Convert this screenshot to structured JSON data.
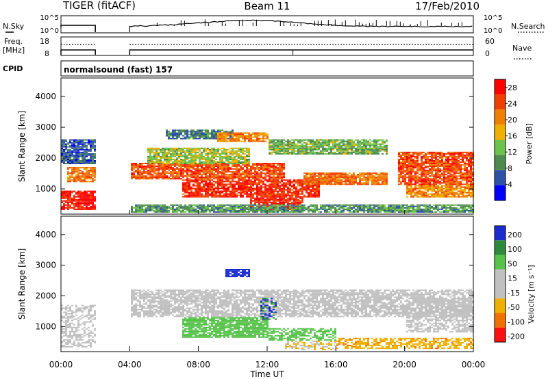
{
  "header": {
    "station": "TIGER (fitACF)",
    "beam": "Beam 11",
    "date": "17/Feb/2010"
  },
  "top_panels": {
    "nsky_label": "N.Sky",
    "nsky_top_tick": "10^5",
    "nsky_bottom_tick": "10^0",
    "nsearch_label": "N.Search",
    "nsearch_top_tick": "10^5",
    "nsearch_bottom_tick": "10^0",
    "freq_label": "Freq.",
    "freq_unit": "[MHz]",
    "freq_top_tick": "18",
    "freq_bottom_tick": "8",
    "nave_label": "Nave",
    "nave_top_tick": "60",
    "nave_bottom_tick": "0",
    "cpid_label": "CPID",
    "cpid_text": "normalsound (fast) 157"
  },
  "chart_data": [
    {
      "type": "heatmap",
      "title": "Power",
      "ylabel": "Slant Range [km]",
      "xlabel": "",
      "x_range_hours": [
        0,
        24
      ],
      "x_ticks": [
        "00:00",
        "04:00",
        "08:00",
        "12:00",
        "16:00",
        "20:00",
        "00:00"
      ],
      "ylim": [
        180,
        4600
      ],
      "y_ticks": [
        1000,
        2000,
        3000,
        4000
      ],
      "colorbar_label": "Power [dB]",
      "colorbar_ticks": [
        4,
        8,
        12,
        16,
        20,
        24,
        28
      ],
      "colorbar_range": [
        0,
        30
      ],
      "data_gap_hours": [
        2.0,
        4.0
      ],
      "palette": [
        "#0000ff",
        "#2f52a8",
        "#4d8a4d",
        "#6cc24a",
        "#f0b000",
        "#f08000",
        "#f04000",
        "#ff0000"
      ]
    },
    {
      "type": "heatmap",
      "title": "Velocity",
      "ylabel": "Slant Range [km]",
      "xlabel": "Time UT",
      "x_range_hours": [
        0,
        24
      ],
      "x_ticks": [
        "00:00",
        "04:00",
        "08:00",
        "12:00",
        "16:00",
        "20:00",
        "00:00"
      ],
      "ylim": [
        180,
        4600
      ],
      "y_ticks": [
        1000,
        2000,
        3000,
        4000
      ],
      "colorbar_label": "Velocity [m s⁻¹]",
      "colorbar_ticks": [
        200,
        100,
        50,
        15,
        -15,
        -50,
        -100,
        -200
      ],
      "data_gap_hours": [
        2.0,
        4.0
      ],
      "palette": [
        "#1a2bd0",
        "#2d8a3a",
        "#56c24a",
        "#c0c0c0",
        "#c0c0c0",
        "#f0b000",
        "#f07000",
        "#ff1010"
      ]
    }
  ]
}
